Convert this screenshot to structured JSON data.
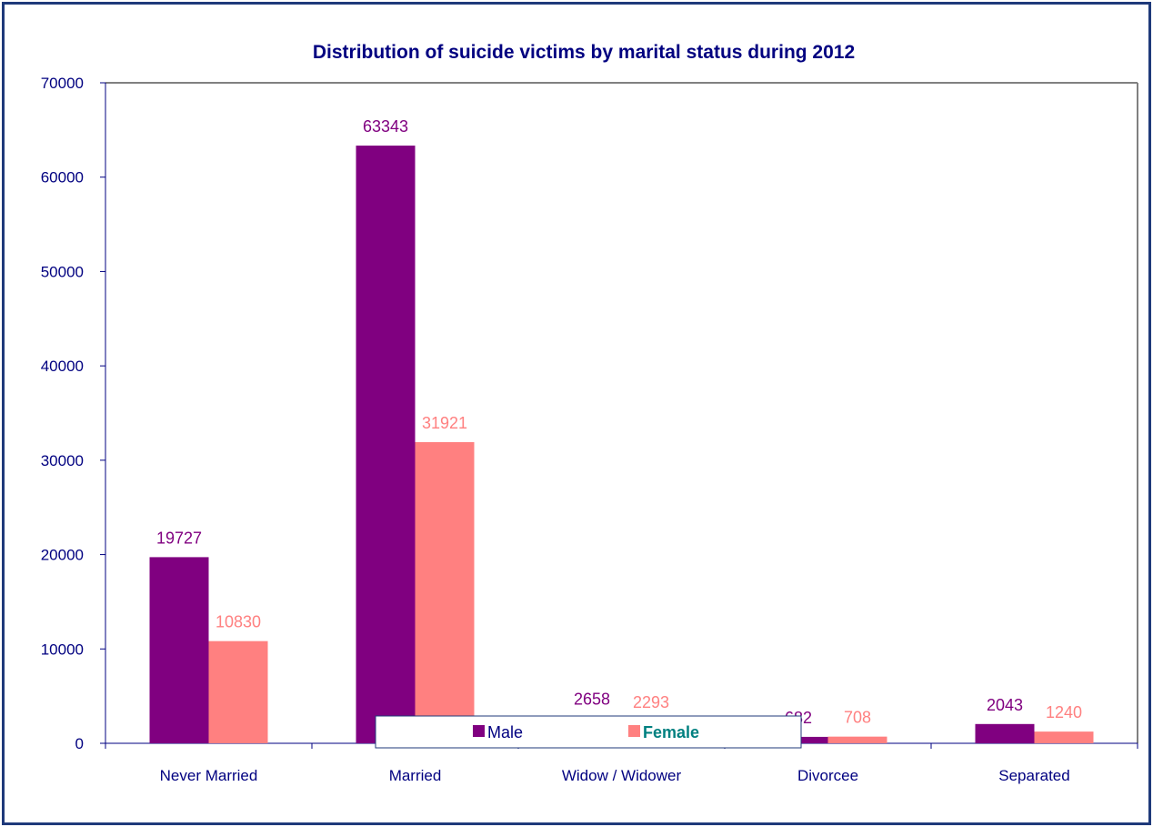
{
  "chart_data": {
    "type": "bar",
    "title": "Distribution of suicide victims by marital status during 2012",
    "xlabel": "",
    "ylabel": "",
    "categories": [
      "Never Married",
      "Married",
      "Widow / Widower",
      "Divorcee",
      "Separated"
    ],
    "series": [
      {
        "name": "Male",
        "values": [
          19727,
          63343,
          2658,
          682,
          2043
        ],
        "color": "#800080"
      },
      {
        "name": "Female",
        "values": [
          10830,
          31921,
          2293,
          708,
          1240
        ],
        "color": "#ff8080"
      }
    ],
    "ylim": [
      0,
      70000
    ],
    "yticks": [
      0,
      10000,
      20000,
      30000,
      40000,
      50000,
      60000,
      70000
    ],
    "grid": false,
    "legend": "bottom",
    "legend_text_colors": [
      "#000080",
      "#008080"
    ]
  }
}
